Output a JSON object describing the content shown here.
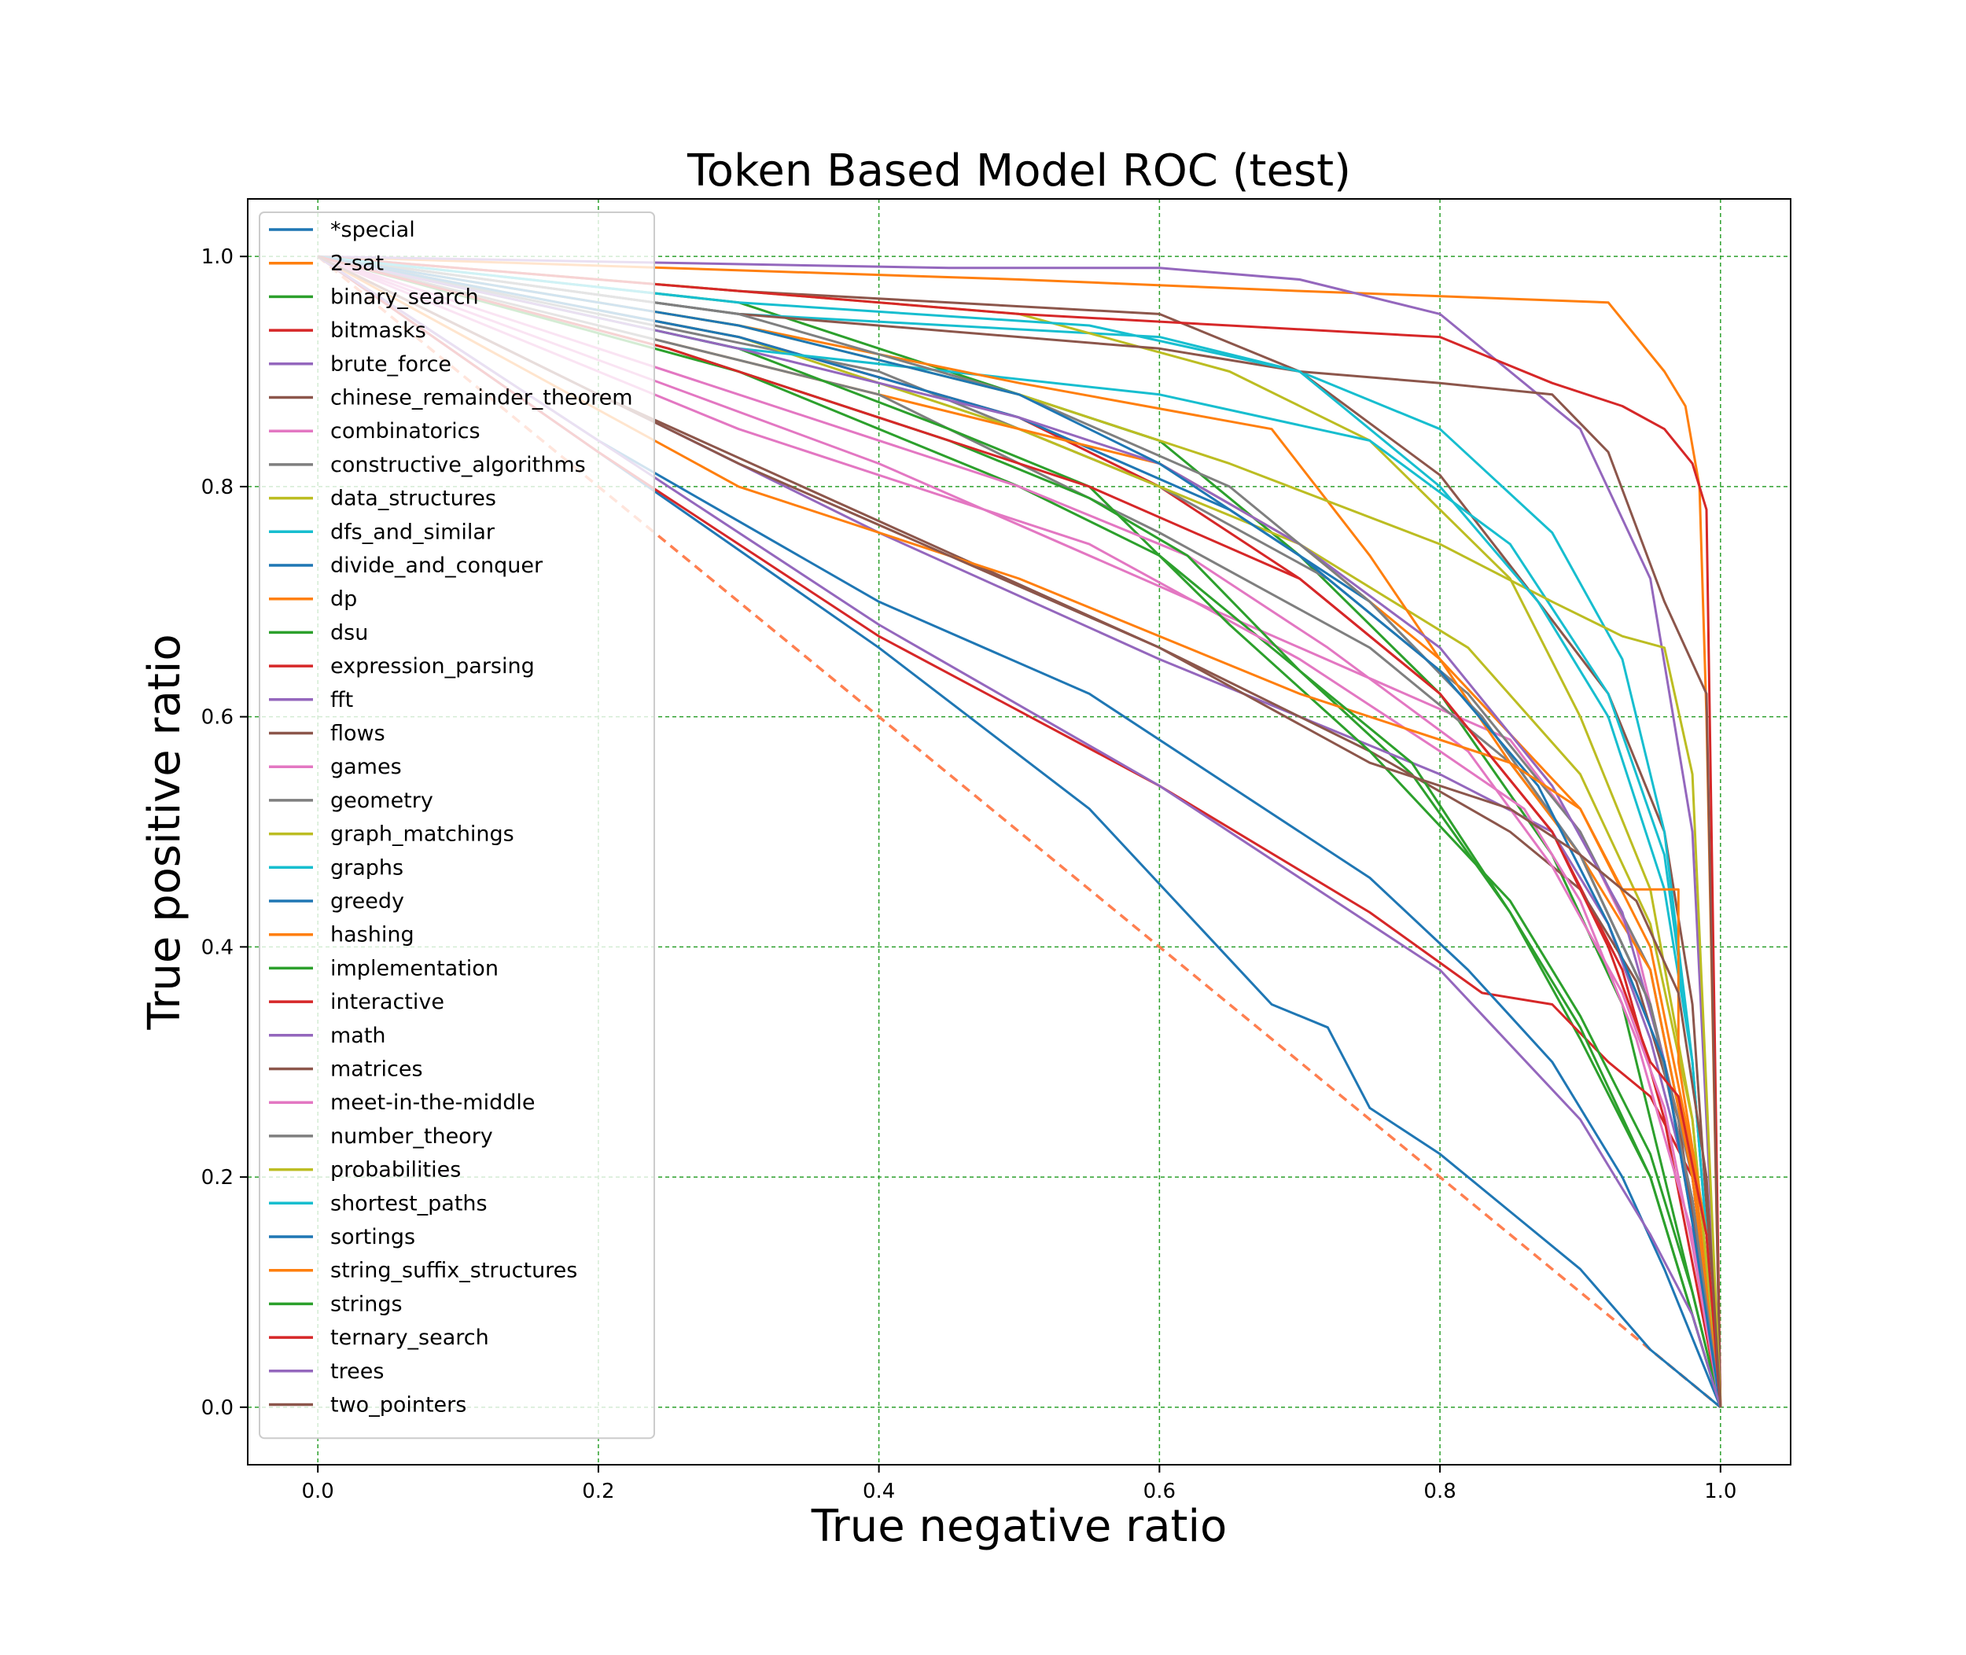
{
  "chart_data": {
    "type": "line",
    "title": "Token Based Model ROC (test)",
    "xlabel": "True negative ratio",
    "ylabel": "True positive ratio",
    "xlim": [
      -0.05,
      1.05
    ],
    "ylim": [
      -0.05,
      1.05
    ],
    "xticks": [
      0.0,
      0.2,
      0.4,
      0.6,
      0.8,
      1.0
    ],
    "yticks": [
      0.0,
      0.2,
      0.4,
      0.6,
      0.8,
      1.0
    ],
    "xtick_labels": [
      "0.0",
      "0.2",
      "0.4",
      "0.6",
      "0.8",
      "1.0"
    ],
    "ytick_labels": [
      "0.0",
      "0.2",
      "0.4",
      "0.6",
      "0.8",
      "1.0"
    ],
    "grid": true,
    "grid_color": "#2ca02c",
    "legend_position": "upper-left",
    "reference_line": {
      "x": [
        0,
        1
      ],
      "y": [
        1,
        0
      ],
      "color": "#ff7f50",
      "style": "dashed"
    },
    "series": [
      {
        "name": "*special",
        "color": "#1f77b4",
        "x": [
          0,
          0.2,
          0.4,
          0.55,
          0.68,
          0.72,
          0.75,
          0.8,
          0.85,
          0.9,
          0.95,
          1.0
        ],
        "y": [
          1.0,
          0.83,
          0.66,
          0.52,
          0.35,
          0.33,
          0.26,
          0.22,
          0.17,
          0.12,
          0.05,
          0.0
        ]
      },
      {
        "name": "2-sat",
        "color": "#ff7f0e",
        "x": [
          0,
          0.5,
          0.7,
          0.92,
          0.96,
          0.975,
          0.985,
          0.99,
          1.0
        ],
        "y": [
          1.0,
          0.98,
          0.97,
          0.96,
          0.9,
          0.87,
          0.8,
          0.6,
          0.0
        ]
      },
      {
        "name": "binary_search",
        "color": "#2ca02c",
        "x": [
          0,
          0.3,
          0.6,
          0.7,
          0.8,
          0.88,
          0.93,
          0.96,
          0.98,
          1.0
        ],
        "y": [
          1.0,
          0.96,
          0.84,
          0.74,
          0.62,
          0.48,
          0.35,
          0.2,
          0.1,
          0.0
        ]
      },
      {
        "name": "bitmasks",
        "color": "#d62728",
        "x": [
          0,
          0.3,
          0.5,
          0.6,
          0.7,
          0.8,
          0.88,
          0.93,
          0.96,
          1.0
        ],
        "y": [
          1.0,
          0.93,
          0.86,
          0.8,
          0.72,
          0.62,
          0.5,
          0.38,
          0.25,
          0.0
        ]
      },
      {
        "name": "brute_force",
        "color": "#9467bd",
        "x": [
          0,
          0.45,
          0.6,
          0.7,
          0.8,
          0.9,
          0.95,
          0.98,
          1.0
        ],
        "y": [
          1.0,
          0.99,
          0.99,
          0.98,
          0.95,
          0.85,
          0.72,
          0.5,
          0.0
        ]
      },
      {
        "name": "chinese_remainder_theorem",
        "color": "#8c564b",
        "x": [
          0,
          0.3,
          0.6,
          0.7,
          0.8,
          0.87,
          0.92,
          0.96,
          0.98,
          1.0
        ],
        "y": [
          1.0,
          0.97,
          0.95,
          0.9,
          0.81,
          0.7,
          0.62,
          0.5,
          0.35,
          0.0
        ]
      },
      {
        "name": "combinatorics",
        "color": "#e377c2",
        "x": [
          0,
          0.4,
          0.7,
          0.85,
          0.9,
          0.94,
          0.98,
          1.0
        ],
        "y": [
          1.0,
          0.82,
          0.66,
          0.58,
          0.5,
          0.4,
          0.2,
          0.0
        ]
      },
      {
        "name": "constructive_algorithms",
        "color": "#7f7f7f",
        "x": [
          0,
          0.4,
          0.6,
          0.72,
          0.82,
          0.9,
          0.95,
          0.98,
          1.0
        ],
        "y": [
          1.0,
          0.9,
          0.8,
          0.72,
          0.62,
          0.5,
          0.38,
          0.2,
          0.0
        ]
      },
      {
        "name": "data_structures",
        "color": "#bcbd22",
        "x": [
          0,
          0.3,
          0.5,
          0.7,
          0.82,
          0.9,
          0.95,
          0.98,
          1.0
        ],
        "y": [
          1.0,
          0.93,
          0.85,
          0.75,
          0.66,
          0.55,
          0.42,
          0.25,
          0.0
        ]
      },
      {
        "name": "dfs_and_similar",
        "color": "#17becf",
        "x": [
          0,
          0.3,
          0.6,
          0.7,
          0.8,
          0.88,
          0.93,
          0.96,
          0.98,
          1.0
        ],
        "y": [
          1.0,
          0.95,
          0.93,
          0.9,
          0.85,
          0.76,
          0.65,
          0.5,
          0.3,
          0.0
        ]
      },
      {
        "name": "divide_and_conquer",
        "color": "#1f77b4",
        "x": [
          0,
          0.3,
          0.5,
          0.65,
          0.75,
          0.83,
          0.9,
          0.95,
          0.98,
          1.0
        ],
        "y": [
          1.0,
          0.93,
          0.86,
          0.78,
          0.7,
          0.6,
          0.48,
          0.35,
          0.18,
          0.0
        ]
      },
      {
        "name": "dp",
        "color": "#ff7f0e",
        "x": [
          0,
          0.3,
          0.6,
          0.7,
          0.8,
          0.9,
          0.95,
          0.98,
          1.0
        ],
        "y": [
          1.0,
          0.91,
          0.82,
          0.75,
          0.65,
          0.52,
          0.4,
          0.22,
          0.0
        ]
      },
      {
        "name": "dsu",
        "color": "#2ca02c",
        "x": [
          0,
          0.3,
          0.5,
          0.6,
          0.7,
          0.78,
          0.85,
          0.9,
          0.95,
          0.98,
          1.0
        ],
        "y": [
          1.0,
          0.9,
          0.8,
          0.74,
          0.64,
          0.55,
          0.43,
          0.32,
          0.2,
          0.08,
          0.0
        ]
      },
      {
        "name": "expression_parsing",
        "color": "#d62728",
        "x": [
          0,
          0.2,
          0.4,
          0.6,
          0.75,
          0.83,
          0.88,
          0.92,
          0.95,
          0.98,
          1.0
        ],
        "y": [
          1.0,
          0.83,
          0.67,
          0.54,
          0.43,
          0.36,
          0.35,
          0.3,
          0.27,
          0.2,
          0.0
        ]
      },
      {
        "name": "fft",
        "color": "#9467bd",
        "x": [
          0,
          0.2,
          0.4,
          0.6,
          0.8,
          0.88,
          0.92,
          0.95,
          0.98,
          1.0
        ],
        "y": [
          1.0,
          0.88,
          0.76,
          0.65,
          0.55,
          0.5,
          0.42,
          0.32,
          0.18,
          0.0
        ]
      },
      {
        "name": "flows",
        "color": "#8c564b",
        "x": [
          0,
          0.2,
          0.4,
          0.6,
          0.75,
          0.85,
          0.9,
          0.94,
          0.97,
          1.0
        ],
        "y": [
          1.0,
          0.88,
          0.77,
          0.66,
          0.57,
          0.5,
          0.45,
          0.37,
          0.25,
          0.0
        ]
      },
      {
        "name": "games",
        "color": "#e377c2",
        "x": [
          0,
          0.3,
          0.55,
          0.7,
          0.8,
          0.86,
          0.9,
          0.94,
          0.98,
          1.0
        ],
        "y": [
          1.0,
          0.85,
          0.75,
          0.65,
          0.57,
          0.52,
          0.44,
          0.32,
          0.15,
          0.0
        ]
      },
      {
        "name": "geometry",
        "color": "#7f7f7f",
        "x": [
          0,
          0.4,
          0.6,
          0.75,
          0.85,
          0.9,
          0.95,
          0.98,
          1.0
        ],
        "y": [
          1.0,
          0.88,
          0.76,
          0.66,
          0.56,
          0.48,
          0.35,
          0.2,
          0.0
        ]
      },
      {
        "name": "graph_matchings",
        "color": "#bcbd22",
        "x": [
          0,
          0.3,
          0.5,
          0.65,
          0.75,
          0.85,
          0.9,
          0.95,
          0.98,
          1.0
        ],
        "y": [
          1.0,
          0.97,
          0.95,
          0.9,
          0.84,
          0.72,
          0.6,
          0.45,
          0.25,
          0.0
        ]
      },
      {
        "name": "graphs",
        "color": "#17becf",
        "x": [
          0,
          0.3,
          0.6,
          0.75,
          0.85,
          0.92,
          0.96,
          0.98,
          1.0
        ],
        "y": [
          1.0,
          0.92,
          0.88,
          0.84,
          0.75,
          0.62,
          0.48,
          0.3,
          0.0
        ]
      },
      {
        "name": "greedy",
        "color": "#1f77b4",
        "x": [
          0,
          0.2,
          0.4,
          0.55,
          0.65,
          0.75,
          0.82,
          0.88,
          0.93,
          0.96,
          1.0
        ],
        "y": [
          1.0,
          0.84,
          0.7,
          0.62,
          0.54,
          0.46,
          0.38,
          0.3,
          0.2,
          0.12,
          0.0
        ]
      },
      {
        "name": "hashing",
        "color": "#ff7f0e",
        "x": [
          0,
          0.3,
          0.5,
          0.68,
          0.75,
          0.8,
          0.85,
          0.9,
          0.95,
          0.98,
          1.0
        ],
        "y": [
          1.0,
          0.94,
          0.89,
          0.85,
          0.74,
          0.65,
          0.56,
          0.48,
          0.38,
          0.2,
          0.0
        ]
      },
      {
        "name": "implementation",
        "color": "#2ca02c",
        "x": [
          0,
          0.3,
          0.45,
          0.55,
          0.65,
          0.75,
          0.85,
          0.9,
          0.95,
          0.98,
          1.0
        ],
        "y": [
          1.0,
          0.92,
          0.85,
          0.8,
          0.68,
          0.57,
          0.44,
          0.34,
          0.22,
          0.1,
          0.0
        ]
      },
      {
        "name": "interactive",
        "color": "#d62728",
        "x": [
          0,
          0.5,
          0.65,
          0.8,
          0.88,
          0.93,
          0.96,
          0.98,
          0.99,
          1.0
        ],
        "y": [
          1.0,
          0.95,
          0.94,
          0.93,
          0.89,
          0.87,
          0.85,
          0.82,
          0.78,
          0.0
        ]
      },
      {
        "name": "math",
        "color": "#9467bd",
        "x": [
          0,
          0.3,
          0.5,
          0.6,
          0.7,
          0.8,
          0.88,
          0.93,
          0.96,
          0.98,
          1.0
        ],
        "y": [
          1.0,
          0.92,
          0.86,
          0.82,
          0.75,
          0.66,
          0.54,
          0.43,
          0.3,
          0.16,
          0.0
        ]
      },
      {
        "name": "matrices",
        "color": "#8c564b",
        "x": [
          0,
          0.3,
          0.6,
          0.7,
          0.8,
          0.88,
          0.92,
          0.96,
          0.99,
          1.0
        ],
        "y": [
          1.0,
          0.95,
          0.92,
          0.9,
          0.89,
          0.88,
          0.83,
          0.7,
          0.62,
          0.0
        ]
      },
      {
        "name": "meet-in-the-middle",
        "color": "#e377c2",
        "x": [
          0,
          0.3,
          0.5,
          0.62,
          0.72,
          0.82,
          0.88,
          0.93,
          0.96,
          0.98,
          1.0
        ],
        "y": [
          1.0,
          0.88,
          0.8,
          0.74,
          0.66,
          0.57,
          0.47,
          0.36,
          0.26,
          0.14,
          0.0
        ]
      },
      {
        "name": "number_theory",
        "color": "#7f7f7f",
        "x": [
          0,
          0.3,
          0.5,
          0.65,
          0.75,
          0.83,
          0.9,
          0.95,
          0.98,
          1.0
        ],
        "y": [
          1.0,
          0.95,
          0.88,
          0.8,
          0.7,
          0.6,
          0.48,
          0.35,
          0.18,
          0.0
        ]
      },
      {
        "name": "probabilities",
        "color": "#bcbd22",
        "x": [
          0,
          0.3,
          0.5,
          0.65,
          0.8,
          0.88,
          0.93,
          0.96,
          0.98,
          1.0
        ],
        "y": [
          1.0,
          0.94,
          0.88,
          0.82,
          0.75,
          0.7,
          0.67,
          0.66,
          0.55,
          0.0
        ]
      },
      {
        "name": "shortest_paths",
        "color": "#17becf",
        "x": [
          0,
          0.3,
          0.55,
          0.7,
          0.8,
          0.87,
          0.92,
          0.96,
          0.98,
          1.0
        ],
        "y": [
          1.0,
          0.96,
          0.94,
          0.9,
          0.8,
          0.7,
          0.6,
          0.45,
          0.3,
          0.0
        ]
      },
      {
        "name": "sortings",
        "color": "#1f77b4",
        "x": [
          0,
          0.3,
          0.5,
          0.6,
          0.7,
          0.8,
          0.87,
          0.92,
          0.96,
          0.98,
          1.0
        ],
        "y": [
          1.0,
          0.94,
          0.88,
          0.82,
          0.74,
          0.64,
          0.54,
          0.42,
          0.3,
          0.16,
          0.0
        ]
      },
      {
        "name": "string_suffix_structures",
        "color": "#ff7f0e",
        "x": [
          0,
          0.3,
          0.5,
          0.7,
          0.85,
          0.9,
          0.93,
          0.97,
          0.97,
          0.99,
          1.0
        ],
        "y": [
          1.0,
          0.8,
          0.72,
          0.62,
          0.56,
          0.52,
          0.45,
          0.45,
          0.3,
          0.15,
          0.0
        ]
      },
      {
        "name": "strings",
        "color": "#2ca02c",
        "x": [
          0,
          0.25,
          0.45,
          0.55,
          0.62,
          0.7,
          0.78,
          0.85,
          0.9,
          0.95,
          1.0
        ],
        "y": [
          1.0,
          0.92,
          0.84,
          0.79,
          0.74,
          0.64,
          0.56,
          0.43,
          0.33,
          0.2,
          0.0
        ]
      },
      {
        "name": "ternary_search",
        "color": "#d62728",
        "x": [
          0,
          0.25,
          0.55,
          0.7,
          0.8,
          0.88,
          0.92,
          0.95,
          0.97,
          0.99,
          1.0
        ],
        "y": [
          1.0,
          0.92,
          0.8,
          0.72,
          0.62,
          0.5,
          0.4,
          0.3,
          0.27,
          0.15,
          0.0
        ]
      },
      {
        "name": "trees",
        "color": "#9467bd",
        "x": [
          0,
          0.2,
          0.4,
          0.6,
          0.8,
          0.9,
          0.95,
          0.98,
          1.0
        ],
        "y": [
          1.0,
          0.84,
          0.68,
          0.54,
          0.38,
          0.25,
          0.15,
          0.08,
          0.0
        ]
      },
      {
        "name": "two_pointers",
        "color": "#8c564b",
        "x": [
          0,
          0.3,
          0.6,
          0.75,
          0.85,
          0.9,
          0.94,
          0.97,
          0.99,
          1.0
        ],
        "y": [
          1.0,
          0.82,
          0.66,
          0.56,
          0.52,
          0.48,
          0.44,
          0.36,
          0.2,
          0.0
        ]
      }
    ]
  }
}
